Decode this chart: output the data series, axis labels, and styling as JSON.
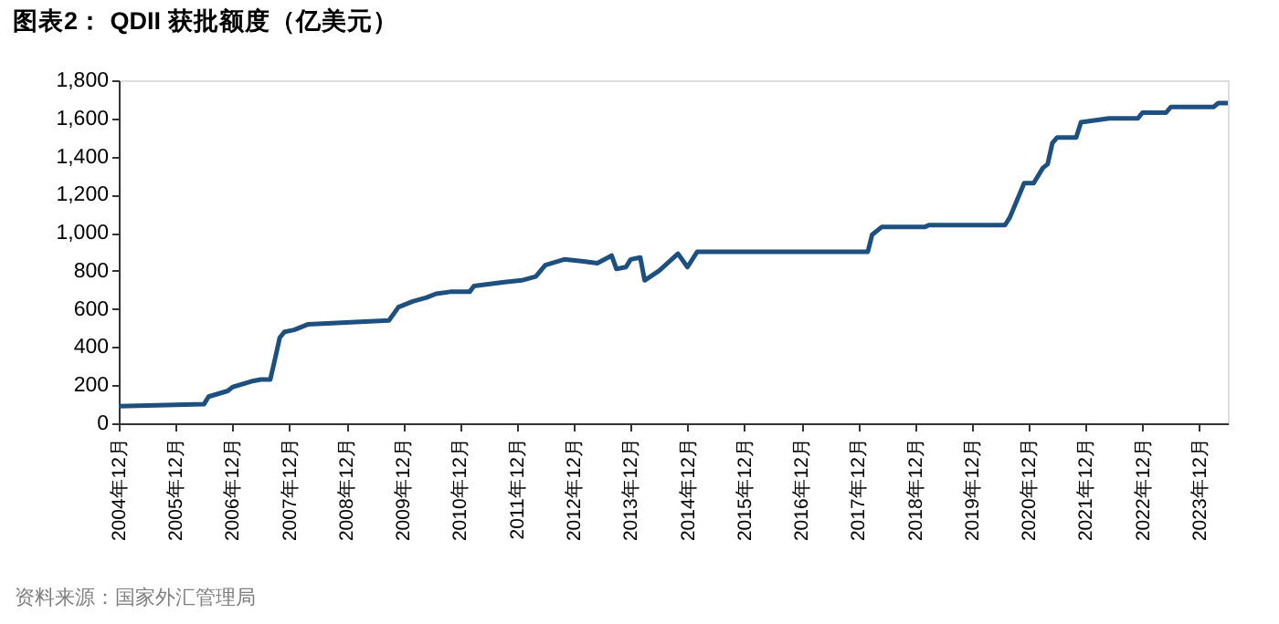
{
  "chart_data": {
    "type": "line",
    "title": "图表2： QDII 获批额度（亿美元）",
    "x": [
      "2004-12",
      "2006-06",
      "2006-07",
      "2006-11",
      "2006-12",
      "2007-04",
      "2007-06",
      "2007-08",
      "2007-09",
      "2007-10",
      "2007-11",
      "2008-01",
      "2008-04",
      "2009-09",
      "2009-11",
      "2010-02",
      "2010-05",
      "2010-07",
      "2010-10",
      "2011-02",
      "2011-03",
      "2011-09",
      "2012-01",
      "2012-04",
      "2012-06",
      "2012-10",
      "2013-02",
      "2013-05",
      "2013-08",
      "2013-09",
      "2013-11",
      "2013-12",
      "2014-02",
      "2014-03",
      "2014-06",
      "2014-10",
      "2014-12",
      "2015-02",
      "2018-02",
      "2018-03",
      "2018-05",
      "2019-02",
      "2019-03",
      "2020-07",
      "2020-08",
      "2020-11",
      "2021-01",
      "2021-03",
      "2021-04",
      "2021-05",
      "2021-06",
      "2021-10",
      "2021-11",
      "2022-05",
      "2022-11",
      "2022-12",
      "2023-05",
      "2023-06",
      "2024-03",
      "2024-04",
      "2024-06"
    ],
    "series": [
      {
        "color": "#1d4f7f",
        "values": [
          90,
          100,
          140,
          170,
          190,
          220,
          230,
          230,
          340,
          450,
          480,
          490,
          520,
          540,
          610,
          640,
          660,
          680,
          690,
          690,
          720,
          740,
          750,
          770,
          830,
          860,
          850,
          840,
          880,
          810,
          820,
          860,
          870,
          750,
          800,
          890,
          820,
          900,
          900,
          990,
          1030,
          1030,
          1040,
          1040,
          1080,
          1260,
          1260,
          1340,
          1360,
          1470,
          1500,
          1500,
          1580,
          1600,
          1600,
          1630,
          1630,
          1660,
          1660,
          1680,
          1680
        ]
      }
    ],
    "xlim": [
      "2004-12",
      "2024-06"
    ],
    "xticks": [
      {
        "value": "2004-12",
        "label": "2004年12月"
      },
      {
        "value": "2005-12",
        "label": "2005年12月"
      },
      {
        "value": "2006-12",
        "label": "2006年12月"
      },
      {
        "value": "2007-12",
        "label": "2007年12月"
      },
      {
        "value": "2008-12",
        "label": "2008年12月"
      },
      {
        "value": "2009-12",
        "label": "2009年12月"
      },
      {
        "value": "2010-12",
        "label": "2010年12月"
      },
      {
        "value": "2011-12",
        "label": "2011年12月"
      },
      {
        "value": "2012-12",
        "label": "2012年12月"
      },
      {
        "value": "2013-12",
        "label": "2013年12月"
      },
      {
        "value": "2014-12",
        "label": "2014年12月"
      },
      {
        "value": "2015-12",
        "label": "2015年12月"
      },
      {
        "value": "2016-12",
        "label": "2016年12月"
      },
      {
        "value": "2017-12",
        "label": "2017年12月"
      },
      {
        "value": "2018-12",
        "label": "2018年12月"
      },
      {
        "value": "2019-12",
        "label": "2019年12月"
      },
      {
        "value": "2020-12",
        "label": "2020年12月"
      },
      {
        "value": "2021-12",
        "label": "2021年12月"
      },
      {
        "value": "2022-12",
        "label": "2022年12月"
      },
      {
        "value": "2023-12",
        "label": "2023年12月"
      }
    ],
    "ylim": [
      0,
      1800
    ],
    "yticks": [
      0,
      200,
      400,
      600,
      800,
      {
        "value": 1000,
        "label": "1,000"
      },
      {
        "value": 1200,
        "label": "1,200"
      },
      {
        "value": 1400,
        "label": "1,400"
      },
      {
        "value": 1600,
        "label": "1,600"
      },
      {
        "value": 1800,
        "label": "1,800"
      }
    ],
    "grid": false,
    "marker": "none",
    "line_style": "solid",
    "annotations": [
      "资料来源：国家外汇管理局"
    ]
  }
}
